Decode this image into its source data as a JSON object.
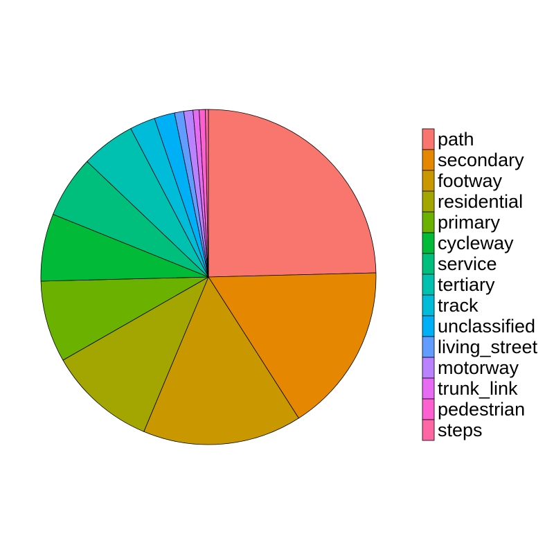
{
  "chart_data": {
    "type": "pie",
    "title": "",
    "categories": [
      "path",
      "secondary",
      "footway",
      "residential",
      "primary",
      "cycleway",
      "service",
      "tertiary",
      "track",
      "unclassified",
      "living_street",
      "motorway",
      "trunk_link",
      "pedestrian",
      "steps"
    ],
    "values": [
      25.0,
      16.6,
      15.6,
      10.6,
      8.0,
      6.6,
      6.1,
      5.3,
      2.5,
      2.0,
      0.9,
      0.9,
      0.6,
      0.6,
      0.3
    ],
    "colors": [
      "#F8766D",
      "#E58700",
      "#C99800",
      "#A3A500",
      "#6BB100",
      "#00BA38",
      "#00BF7D",
      "#00C0AF",
      "#00BCD8",
      "#00B0F6",
      "#619CFF",
      "#B983FF",
      "#E76BF3",
      "#FD61D1",
      "#FF67A4"
    ],
    "start_angle": "12 o'clock",
    "direction": "clockwise",
    "legend": {
      "position": "right",
      "entries": [
        "path",
        "secondary",
        "footway",
        "residential",
        "primary",
        "cycleway",
        "service",
        "tertiary",
        "track",
        "unclassified",
        "living_street",
        "motorway",
        "trunk_link",
        "pedestrian",
        "steps"
      ]
    }
  }
}
